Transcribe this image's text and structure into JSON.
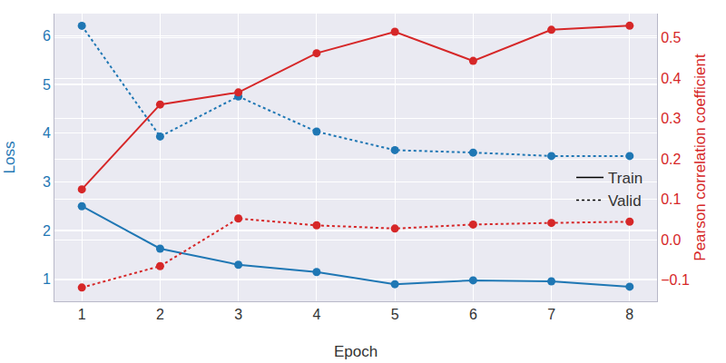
{
  "chart_data": {
    "type": "line",
    "x_label": "Epoch",
    "y_label": "Loss",
    "y2_label": "Pearson correlation coefficient",
    "x": [
      1,
      2,
      3,
      4,
      5,
      6,
      7,
      8
    ],
    "xlim": [
      0.65,
      8.35
    ],
    "xticks": [
      1,
      2,
      3,
      4,
      5,
      6,
      7,
      8
    ],
    "ylim": [
      0.55,
      6.45
    ],
    "yticks": [
      1,
      2,
      3,
      4,
      5,
      6
    ],
    "y2lim": [
      -0.152,
      0.56
    ],
    "y2ticks": [
      {
        "value": -0.1,
        "label": "−0.1"
      },
      {
        "value": 0,
        "label": "0.0"
      },
      0.1,
      0.2,
      0.3,
      0.4,
      0.5
    ],
    "grid": true,
    "legend": "right",
    "marker": "circle",
    "series": [
      {
        "name": "Train",
        "color": "#1f77b4",
        "line_style": "solid",
        "axis": "y",
        "values": [
          2.5,
          1.63,
          1.3,
          1.15,
          0.9,
          0.98,
          0.96,
          0.85
        ]
      },
      {
        "name": "Valid",
        "color": "#1f77b4",
        "line_style": "dotted",
        "axis": "y",
        "values": [
          6.2,
          3.93,
          4.75,
          4.03,
          3.65,
          3.6,
          3.53,
          3.53
        ]
      },
      {
        "name": "Train",
        "color": "#d62728",
        "line_style": "solid",
        "axis": "y2",
        "values": [
          0.125,
          0.335,
          0.365,
          0.462,
          0.515,
          0.443,
          0.52,
          0.53
        ]
      },
      {
        "name": "Valid",
        "color": "#d62728",
        "line_style": "dotted",
        "axis": "y2",
        "values": [
          -0.118,
          -0.065,
          0.053,
          0.036,
          0.028,
          0.038,
          0.042,
          0.045
        ]
      }
    ]
  }
}
